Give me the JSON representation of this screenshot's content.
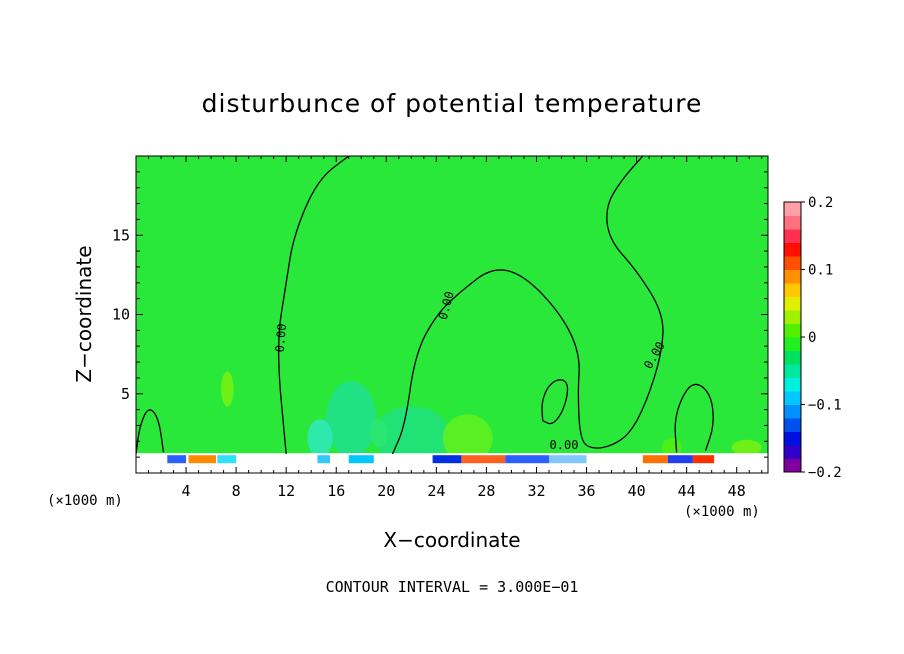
{
  "chart_data": {
    "type": "heatmap",
    "title": "disturbunce of potential temperature",
    "xlabel": "X−coordinate",
    "ylabel": "Z−coordinate",
    "x_unit_left": "(×1000 m)",
    "x_unit_right": "(×1000 m)",
    "xlim": [
      0,
      50.5
    ],
    "ylim": [
      0,
      20
    ],
    "x_ticks": [
      4,
      8,
      12,
      16,
      20,
      24,
      28,
      32,
      36,
      40,
      44,
      48
    ],
    "y_ticks": [
      5,
      10,
      15
    ],
    "grid": false,
    "contour_label": "0.00",
    "contour_interval_text": "CONTOUR INTERVAL = 3.000E−01",
    "colorbar": {
      "min": -0.2,
      "max": 0.2,
      "tick_values": [
        0.2,
        0.1,
        0,
        -0.1,
        -0.2
      ],
      "tick_labels": [
        "0.2",
        "0.1",
        "0",
        "−0.1",
        "−0.2"
      ],
      "colors": [
        "#8000a0",
        "#3000c8",
        "#0010e0",
        "#0050f0",
        "#0090ff",
        "#00c8ff",
        "#00f0e0",
        "#00e8a0",
        "#00e060",
        "#20f020",
        "#50f000",
        "#a0f000",
        "#e0f000",
        "#ffc800",
        "#ff9000",
        "#ff5000",
        "#ff1000",
        "#ff3050",
        "#ff7080",
        "#ffa0a8"
      ]
    },
    "background_color": "#2ae83a",
    "series": [
      {
        "points": [
          [
            0,
            1.2
          ],
          [
            0.3,
            3.0
          ],
          [
            1.0,
            4.2
          ],
          [
            1.8,
            3.5
          ],
          [
            2.2,
            1.3
          ]
        ]
      },
      {
        "points": [
          [
            12.0,
            1.2
          ],
          [
            11.2,
            8.0
          ],
          [
            12.0,
            12.0
          ],
          [
            12.6,
            15.0
          ],
          [
            14.5,
            18.5
          ],
          [
            17.0,
            20.0
          ]
        ]
      },
      {
        "points": [
          [
            20.5,
            1.2
          ],
          [
            21.5,
            3.0
          ],
          [
            22.3,
            7.5
          ],
          [
            24.0,
            10.0
          ],
          [
            26.0,
            11.5
          ],
          [
            28.5,
            13.0
          ],
          [
            31.0,
            12.5
          ],
          [
            34.0,
            10.0
          ],
          [
            35.5,
            7.5
          ],
          [
            35.3,
            5.0
          ],
          [
            35.5,
            2.0
          ],
          [
            36.5,
            1.5
          ],
          [
            38.0,
            1.7
          ],
          [
            39.5,
            2.5
          ],
          [
            40.8,
            4.5
          ],
          [
            42.0,
            7.5
          ],
          [
            42.2,
            10.0
          ],
          [
            40.0,
            12.8
          ],
          [
            37.8,
            14.7
          ],
          [
            37.5,
            16.8
          ],
          [
            38.8,
            18.5
          ],
          [
            40.5,
            20.0
          ]
        ]
      },
      {
        "points": [
          [
            32.5,
            3.3
          ],
          [
            33.3,
            3.0
          ],
          [
            34.2,
            4.0
          ],
          [
            34.6,
            5.5
          ],
          [
            34.0,
            6.0
          ],
          [
            33.0,
            5.6
          ],
          [
            32.4,
            4.5
          ],
          [
            32.5,
            3.3
          ]
        ]
      },
      {
        "points": [
          [
            43.2,
            1.3
          ],
          [
            43.0,
            3.5
          ],
          [
            44.0,
            5.4
          ],
          [
            45.0,
            5.7
          ],
          [
            46.0,
            4.8
          ],
          [
            46.2,
            3.0
          ],
          [
            45.5,
            1.4
          ]
        ]
      }
    ]
  }
}
